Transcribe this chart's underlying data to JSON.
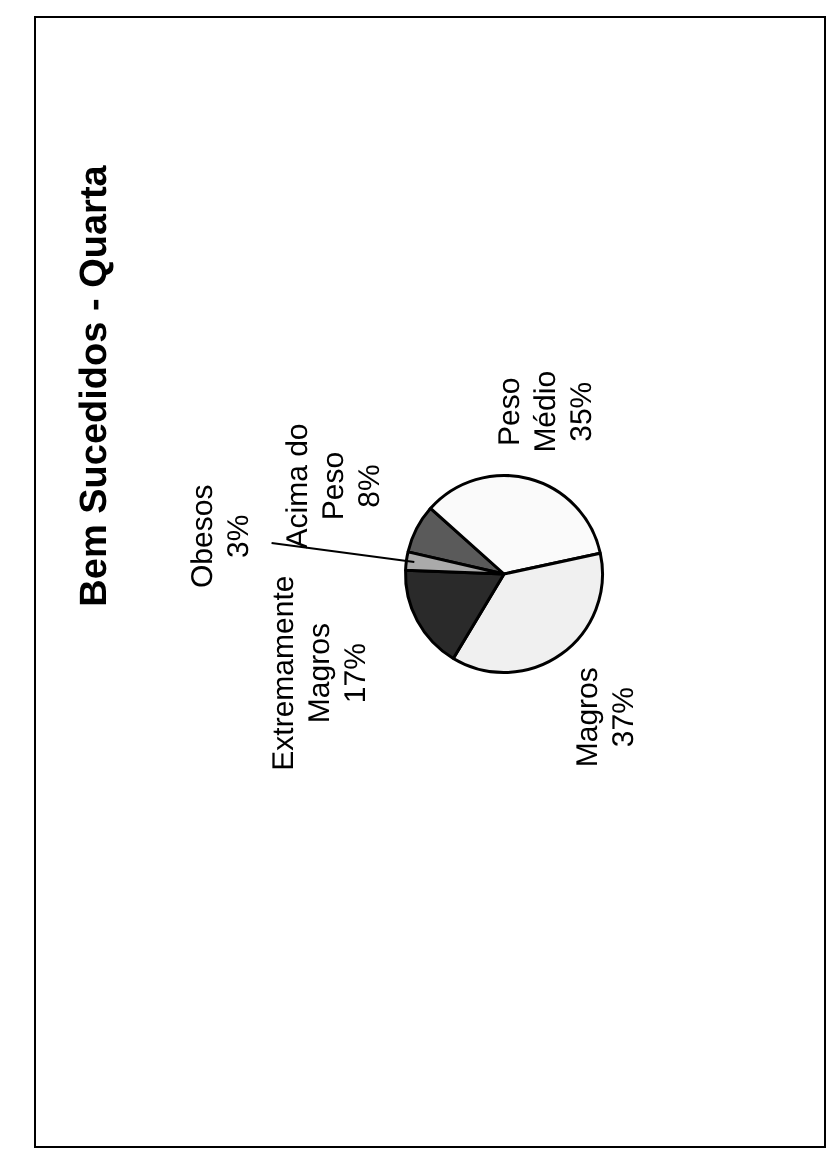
{
  "chart_data": {
    "type": "pie",
    "title": "Bem Sucedidos - Quarta",
    "categories": [
      "Acima do Peso",
      "Peso Médio",
      "Magros",
      "Extremamente Magros",
      "Obesos"
    ],
    "values": [
      8,
      35,
      37,
      17,
      3
    ],
    "value_labels": [
      "8%",
      "35%",
      "37%",
      "17%",
      "3%"
    ],
    "colors": [
      "#5a5a5a",
      "#fafafa",
      "#f0f0f0",
      "#2a2a2a",
      "#aaaaaa"
    ]
  }
}
